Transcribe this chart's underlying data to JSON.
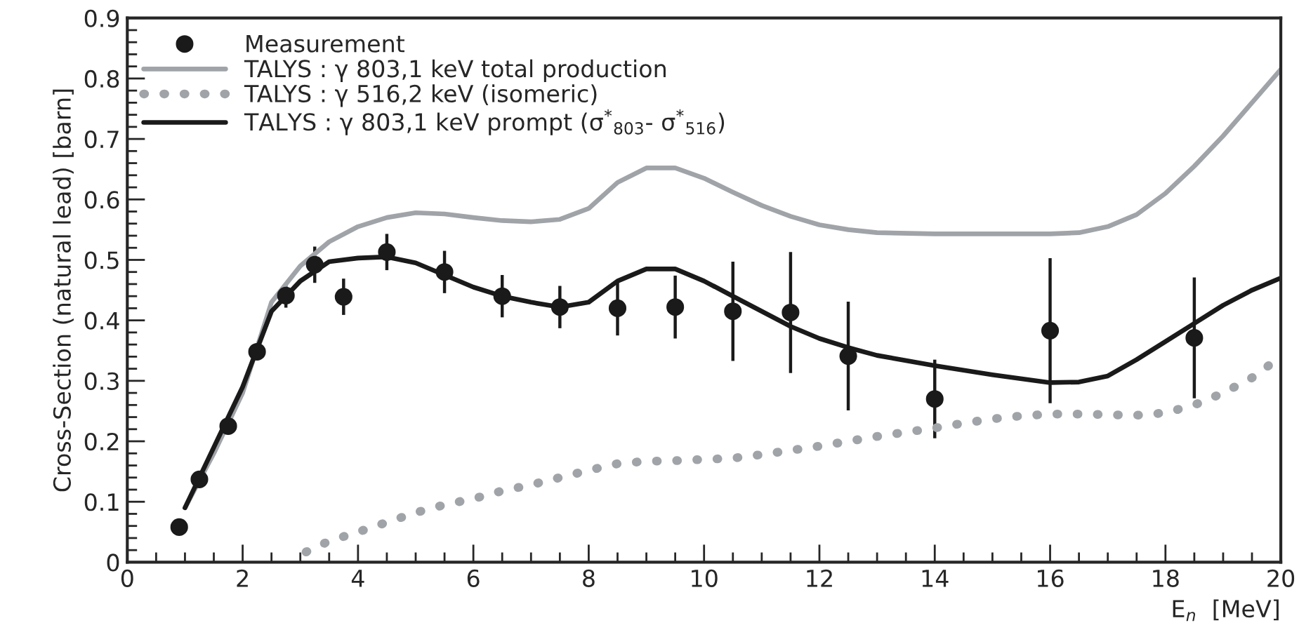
{
  "chart_data": {
    "type": "line",
    "xlabel": "E$_{n}$  [MeV]",
    "ylabel": "Cross-Section (natural lead) [barn]",
    "xlim": [
      0,
      20
    ],
    "xticks": [
      0,
      2,
      4,
      6,
      8,
      10,
      12,
      14,
      16,
      18,
      20
    ],
    "ylim": [
      0,
      0.9
    ],
    "yticks": [
      0,
      0.1,
      0.2,
      0.3,
      0.4,
      0.5,
      0.6,
      0.7,
      0.8,
      0.9
    ],
    "grid": false,
    "legend": "top left",
    "series": [
      {
        "name": "Measurement",
        "type": "scatter",
        "marker": "circle",
        "color": "#1a1a1a",
        "x": [
          0.9,
          1.25,
          1.75,
          2.25,
          2.75,
          3.25,
          3.75,
          4.5,
          5.5,
          6.5,
          7.5,
          8.5,
          9.5,
          10.5,
          11.5,
          12.5,
          14,
          16,
          18.5
        ],
        "values": [
          0.058,
          0.137,
          0.225,
          0.348,
          0.441,
          0.492,
          0.439,
          0.513,
          0.48,
          0.44,
          0.422,
          0.42,
          0.422,
          0.415,
          0.413,
          0.341,
          0.27,
          0.383,
          0.371
        ],
        "errors": [
          null,
          null,
          null,
          0.01,
          0.02,
          0.03,
          0.03,
          0.03,
          0.035,
          0.035,
          0.035,
          0.045,
          0.052,
          0.082,
          0.1,
          0.09,
          0.065,
          0.12,
          0.1
        ]
      },
      {
        "name": "TALYS : γ 803,1 keV total production",
        "line_style": "solid",
        "color": "#a0a4a8",
        "x": [
          1.0,
          1.5,
          2,
          2.5,
          3,
          3.5,
          4,
          4.5,
          5,
          5.5,
          6,
          6.5,
          7,
          7.5,
          8,
          8.5,
          9,
          9.5,
          10,
          10.5,
          11,
          11.5,
          12,
          12.5,
          13,
          14,
          15,
          16,
          16.5,
          17,
          17.5,
          18,
          18.5,
          19,
          19.5,
          20
        ],
        "values": [
          0.09,
          0.18,
          0.28,
          0.43,
          0.49,
          0.53,
          0.555,
          0.57,
          0.578,
          0.576,
          0.57,
          0.565,
          0.563,
          0.567,
          0.585,
          0.628,
          0.652,
          0.652,
          0.635,
          0.612,
          0.59,
          0.572,
          0.558,
          0.55,
          0.545,
          0.543,
          0.543,
          0.543,
          0.545,
          0.555,
          0.575,
          0.61,
          0.655,
          0.705,
          0.76,
          0.815
        ]
      },
      {
        "name": "TALYS : γ 516,2 keV (isomeric)",
        "line_style": "dotted",
        "color": "#a0a4a8",
        "x": [
          3.1,
          3.5,
          4,
          4.5,
          5,
          5.5,
          6,
          6.5,
          7,
          7.5,
          8,
          8.5,
          9,
          9.5,
          10,
          10.5,
          11,
          11.5,
          12,
          12.5,
          13,
          13.5,
          14,
          14.5,
          15,
          15.5,
          16,
          16.5,
          17,
          17.5,
          18,
          18.5,
          19,
          19.5,
          20
        ],
        "values": [
          0.017,
          0.035,
          0.05,
          0.066,
          0.082,
          0.095,
          0.105,
          0.118,
          0.128,
          0.14,
          0.152,
          0.163,
          0.167,
          0.168,
          0.17,
          0.172,
          0.178,
          0.185,
          0.192,
          0.2,
          0.208,
          0.215,
          0.222,
          0.23,
          0.237,
          0.242,
          0.245,
          0.245,
          0.244,
          0.243,
          0.247,
          0.26,
          0.28,
          0.305,
          0.34
        ]
      },
      {
        "name": "TALYS : γ 803,1 keV prompt (σ$^{*}$$_{803}$- σ$^{*}$$_{516}$)",
        "line_style": "solid",
        "color": "#1a1a1a",
        "x": [
          1.0,
          1.5,
          2,
          2.5,
          3,
          3.5,
          4,
          4.5,
          5,
          5.5,
          6,
          6.5,
          7,
          7.5,
          8,
          8.5,
          9,
          9.5,
          10,
          10.5,
          11,
          11.5,
          12,
          12.5,
          13,
          14,
          15,
          16,
          16.5,
          17,
          17.5,
          18,
          18.5,
          19,
          19.5,
          20
        ],
        "values": [
          0.09,
          0.19,
          0.29,
          0.415,
          0.465,
          0.497,
          0.503,
          0.505,
          0.495,
          0.475,
          0.455,
          0.44,
          0.43,
          0.422,
          0.43,
          0.465,
          0.485,
          0.485,
          0.465,
          0.44,
          0.415,
          0.39,
          0.37,
          0.355,
          0.342,
          0.325,
          0.31,
          0.297,
          0.298,
          0.308,
          0.335,
          0.365,
          0.395,
          0.425,
          0.45,
          0.47
        ]
      }
    ]
  }
}
